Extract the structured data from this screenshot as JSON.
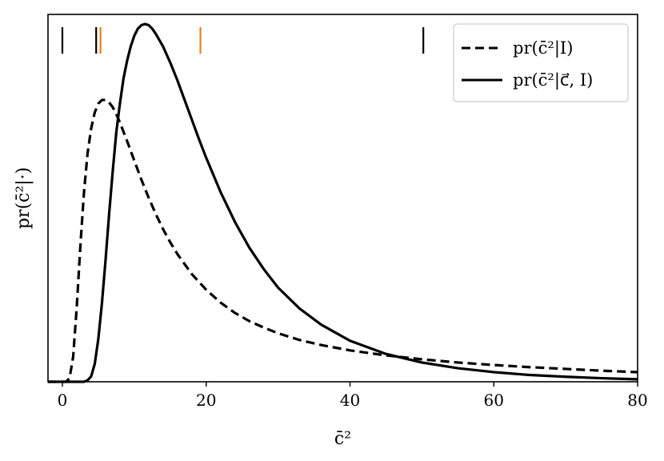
{
  "chart_data": {
    "type": "line",
    "title": "",
    "xlabel": "c̄²",
    "ylabel": "pr(c̄²|·)",
    "xlim": [
      -2,
      80
    ],
    "ylim": [
      0,
      1.03
    ],
    "x_ticks": [
      0,
      20,
      40,
      60,
      80
    ],
    "x_tick_labels": [
      "0",
      "20",
      "40",
      "60",
      "80"
    ],
    "y_ticks_shown": false,
    "grid": false,
    "legend_position": "top-right",
    "series": [
      {
        "name": "pr(c̄²|I)",
        "style": "dashed",
        "color": "#000000",
        "x": [
          0.5,
          1.0,
          1.5,
          2.0,
          2.5,
          3.0,
          3.5,
          4.0,
          4.5,
          5.0,
          5.5,
          6.0,
          6.5,
          7.0,
          7.5,
          8.0,
          9.0,
          10.0,
          11.0,
          12.0,
          13.0,
          14.0,
          15.0,
          16.0,
          18.0,
          20.0,
          22.0,
          24.0,
          26.0,
          28.0,
          30.0,
          33.0,
          36.0,
          40.0,
          45.0,
          50.0,
          55.0,
          60.0,
          65.0,
          70.0,
          75.0,
          80.0
        ],
        "y": [
          0.0,
          0.01,
          0.07,
          0.21,
          0.38,
          0.53,
          0.64,
          0.71,
          0.755,
          0.78,
          0.79,
          0.79,
          0.783,
          0.77,
          0.75,
          0.727,
          0.675,
          0.62,
          0.566,
          0.516,
          0.47,
          0.428,
          0.391,
          0.358,
          0.302,
          0.258,
          0.222,
          0.193,
          0.17,
          0.152,
          0.136,
          0.117,
          0.103,
          0.088,
          0.074,
          0.063,
          0.054,
          0.047,
          0.041,
          0.036,
          0.031,
          0.027
        ]
      },
      {
        "name": "pr(c̄²|c⃗, I)",
        "style": "solid",
        "color": "#000000",
        "x": [
          3.0,
          3.5,
          4.0,
          4.5,
          5.0,
          5.5,
          6.0,
          6.5,
          7.0,
          7.5,
          8.0,
          8.5,
          9.0,
          9.5,
          10.0,
          10.5,
          11.0,
          11.5,
          12.0,
          12.5,
          13.0,
          14.0,
          15.0,
          16.0,
          17.0,
          18.0,
          19.0,
          20.0,
          22.0,
          24.0,
          26.0,
          28.0,
          30.0,
          33.0,
          36.0,
          40.0,
          45.0,
          50.0,
          55.0,
          60.0,
          65.0,
          70.0,
          75.0,
          80.0
        ],
        "y": [
          0.0,
          0.004,
          0.015,
          0.05,
          0.12,
          0.22,
          0.34,
          0.47,
          0.59,
          0.7,
          0.78,
          0.85,
          0.9,
          0.94,
          0.97,
          0.99,
          1.0,
          1.003,
          1.0,
          0.99,
          0.975,
          0.94,
          0.895,
          0.845,
          0.79,
          0.735,
          0.68,
          0.628,
          0.532,
          0.448,
          0.376,
          0.316,
          0.264,
          0.205,
          0.16,
          0.115,
          0.078,
          0.054,
          0.038,
          0.027,
          0.019,
          0.014,
          0.01,
          0.007
        ]
      }
    ],
    "annotations": {
      "rug_marks": [
        {
          "x": 0.0,
          "color": "#000000"
        },
        {
          "x": 4.7,
          "color": "#000000"
        },
        {
          "x": 5.3,
          "color": "#e67e22"
        },
        {
          "x": 19.2,
          "color": "#e67e22"
        },
        {
          "x": 50.2,
          "color": "#000000"
        }
      ]
    }
  }
}
